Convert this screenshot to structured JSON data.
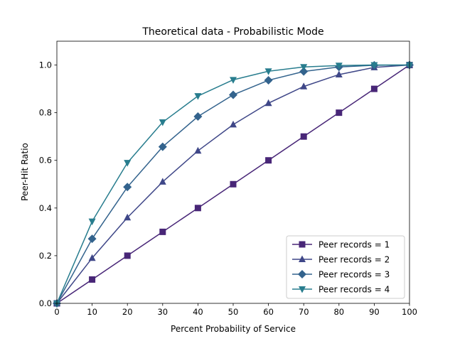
{
  "chart_data": {
    "type": "line",
    "title": "Theoretical data - Probabilistic Mode",
    "xlabel": "Percent Probability of Service",
    "ylabel": "Peer-Hit Ratio",
    "xlim": [
      0,
      100
    ],
    "ylim": [
      0,
      1.1
    ],
    "x_ticks": [
      0,
      10,
      20,
      30,
      40,
      50,
      60,
      70,
      80,
      90,
      100
    ],
    "y_ticks": [
      0.0,
      0.2,
      0.4,
      0.6,
      0.8,
      1.0
    ],
    "x_tick_labels": [
      "0",
      "10",
      "20",
      "30",
      "40",
      "50",
      "60",
      "70",
      "80",
      "90",
      "100"
    ],
    "y_tick_labels": [
      "0.0",
      "0.2",
      "0.4",
      "0.6",
      "0.8",
      "1.0"
    ],
    "grid": false,
    "legend_position": "lower-right",
    "x": [
      0,
      10,
      20,
      30,
      40,
      50,
      60,
      70,
      80,
      90,
      100
    ],
    "series": [
      {
        "name": "Peer records = 1",
        "color": "#482677",
        "marker": "square",
        "values": [
          0,
          0.1,
          0.2,
          0.3,
          0.4,
          0.5,
          0.6,
          0.7,
          0.8,
          0.9,
          1.0
        ]
      },
      {
        "name": "Peer records = 2",
        "color": "#3f4788",
        "marker": "triangle-up",
        "values": [
          0,
          0.19,
          0.36,
          0.51,
          0.64,
          0.75,
          0.84,
          0.91,
          0.96,
          0.99,
          1.0
        ]
      },
      {
        "name": "Peer records = 3",
        "color": "#33638d",
        "marker": "diamond",
        "values": [
          0,
          0.271,
          0.488,
          0.657,
          0.784,
          0.875,
          0.936,
          0.973,
          0.992,
          0.999,
          1.0
        ]
      },
      {
        "name": "Peer records = 4",
        "color": "#287d8e",
        "marker": "triangle-down",
        "values": [
          0,
          0.344,
          0.59,
          0.76,
          0.87,
          0.938,
          0.974,
          0.992,
          0.998,
          1.0,
          1.0
        ]
      }
    ]
  }
}
